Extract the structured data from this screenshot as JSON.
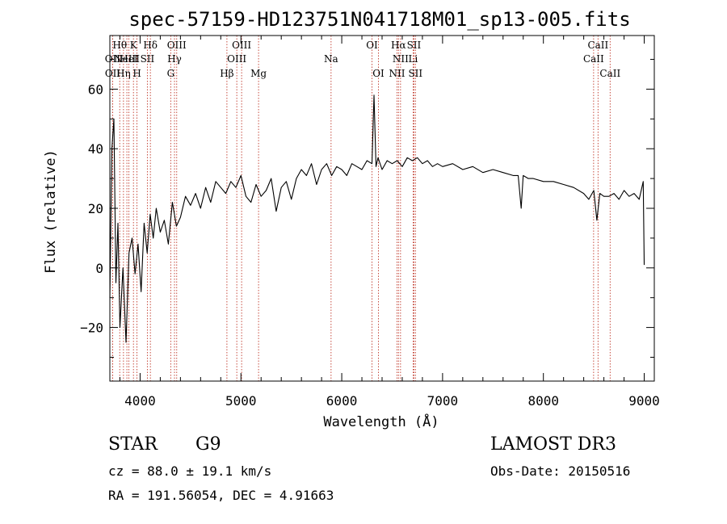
{
  "chart_data": {
    "type": "line",
    "title": "spec-57159-HD123751N041718M01_sp13-005.fits",
    "xlabel": "Wavelength (Å)",
    "ylabel": "Flux (relative)",
    "xlim": [
      3700,
      9100
    ],
    "ylim": [
      -38,
      78
    ],
    "x_ticks": [
      4000,
      5000,
      6000,
      7000,
      8000,
      9000
    ],
    "y_ticks": [
      -20,
      0,
      20,
      40,
      60
    ],
    "x_tick_labels": [
      "4000",
      "5000",
      "6000",
      "7000",
      "8000",
      "9000"
    ],
    "y_tick_labels": [
      "−20",
      "0",
      "20",
      "40",
      "60"
    ],
    "series": [
      {
        "name": "flux",
        "x": [
          3700,
          3720,
          3740,
          3760,
          3780,
          3800,
          3830,
          3860,
          3890,
          3920,
          3950,
          3980,
          4010,
          4040,
          4070,
          4100,
          4130,
          4160,
          4200,
          4240,
          4280,
          4320,
          4360,
          4400,
          4450,
          4500,
          4550,
          4600,
          4650,
          4700,
          4750,
          4800,
          4850,
          4900,
          4950,
          5000,
          5050,
          5100,
          5150,
          5200,
          5250,
          5300,
          5350,
          5400,
          5450,
          5500,
          5550,
          5600,
          5650,
          5700,
          5750,
          5800,
          5850,
          5900,
          5950,
          6000,
          6050,
          6100,
          6150,
          6200,
          6250,
          6300,
          6320,
          6340,
          6360,
          6400,
          6450,
          6500,
          6550,
          6600,
          6650,
          6700,
          6750,
          6800,
          6850,
          6900,
          6950,
          7000,
          7100,
          7200,
          7300,
          7400,
          7500,
          7600,
          7700,
          7750,
          7780,
          7800,
          7850,
          7900,
          8000,
          8100,
          8200,
          8300,
          8400,
          8450,
          8500,
          8530,
          8560,
          8600,
          8650,
          8700,
          8750,
          8800,
          8850,
          8900,
          8950,
          8990,
          9000
        ],
        "y": [
          -10,
          40,
          50,
          -5,
          15,
          -20,
          0,
          -25,
          5,
          10,
          -2,
          8,
          -8,
          15,
          5,
          18,
          10,
          20,
          12,
          16,
          8,
          22,
          14,
          17,
          24,
          21,
          25,
          20,
          27,
          22,
          29,
          27,
          25,
          29,
          27,
          31,
          24,
          22,
          28,
          24,
          26,
          30,
          19,
          27,
          29,
          23,
          30,
          33,
          31,
          35,
          28,
          33,
          35,
          31,
          34,
          33,
          31,
          35,
          34,
          33,
          36,
          35,
          58,
          34,
          37,
          33,
          36,
          35,
          36,
          34,
          37,
          36,
          37,
          35,
          36,
          34,
          35,
          34,
          35,
          33,
          34,
          32,
          33,
          32,
          31,
          31,
          20,
          31,
          30,
          30,
          29,
          29,
          28,
          27,
          25,
          23,
          26,
          16,
          25,
          24,
          24,
          25,
          23,
          26,
          24,
          25,
          23,
          29,
          1
        ]
      }
    ],
    "emission_lines": [
      {
        "wavelength": 3727,
        "label": "OII",
        "tier": 2
      },
      {
        "wavelength": 3728,
        "label": "OII",
        "tier": 3
      },
      {
        "wavelength": 3798,
        "label": "Hθ",
        "tier": 1
      },
      {
        "wavelength": 3835,
        "label": "Hη",
        "tier": 3
      },
      {
        "wavelength": 3869,
        "label": "NeIII",
        "tier": 2
      },
      {
        "wavelength": 3889,
        "label": "HeI",
        "tier": 2
      },
      {
        "wavelength": 3934,
        "label": "K",
        "tier": 1
      },
      {
        "wavelength": 3969,
        "label": "H",
        "tier": 3
      },
      {
        "wavelength": 4072,
        "label": "SII",
        "tier": 2
      },
      {
        "wavelength": 4102,
        "label": "Hδ",
        "tier": 1
      },
      {
        "wavelength": 4304,
        "label": "G",
        "tier": 3
      },
      {
        "wavelength": 4341,
        "label": "Hγ",
        "tier": 2
      },
      {
        "wavelength": 4363,
        "label": "OIII",
        "tier": 1
      },
      {
        "wavelength": 4861,
        "label": "Hβ",
        "tier": 3
      },
      {
        "wavelength": 4959,
        "label": "OIII",
        "tier": 2
      },
      {
        "wavelength": 5007,
        "label": "OIII",
        "tier": 1
      },
      {
        "wavelength": 5175,
        "label": "Mg",
        "tier": 3
      },
      {
        "wavelength": 5894,
        "label": "Na",
        "tier": 2
      },
      {
        "wavelength": 6300,
        "label": "OI",
        "tier": 1
      },
      {
        "wavelength": 6364,
        "label": "OI",
        "tier": 3
      },
      {
        "wavelength": 6548,
        "label": "NII",
        "tier": 3
      },
      {
        "wavelength": 6563,
        "label": "Hα",
        "tier": 1
      },
      {
        "wavelength": 6583,
        "label": "NII",
        "tier": 2
      },
      {
        "wavelength": 6708,
        "label": "Li",
        "tier": 2
      },
      {
        "wavelength": 6716,
        "label": "SII",
        "tier": 1
      },
      {
        "wavelength": 6731,
        "label": "SII",
        "tier": 3
      },
      {
        "wavelength": 8498,
        "label": "CaII",
        "tier": 2
      },
      {
        "wavelength": 8542,
        "label": "CaII",
        "tier": 1
      },
      {
        "wavelength": 8662,
        "label": "CaII",
        "tier": 3
      }
    ]
  },
  "info": {
    "object_class": "STAR",
    "subclass": "G9",
    "survey": "LAMOST DR3",
    "redshift_text": "cz = 88.0 ± 19.1 km/s",
    "obs_date_text": "Obs-Date: 20150516",
    "coords_text": "RA = 191.56054, DEC =   4.91663"
  },
  "colors": {
    "spectrum": "#000000",
    "line_markers": "#c0392b",
    "axes": "#000000",
    "background": "#ffffff"
  }
}
